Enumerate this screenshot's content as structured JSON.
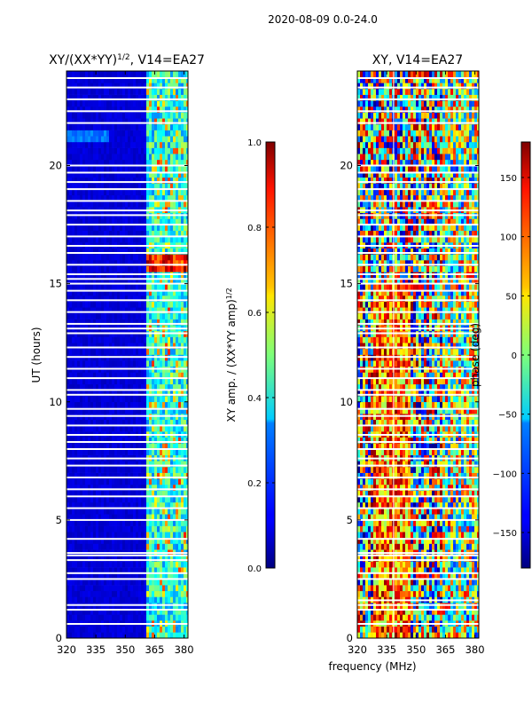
{
  "suptitle": "2020-08-09 0.0-24.0",
  "chart_data": [
    {
      "type": "heatmap",
      "title": "XY/(XX*YY)^{1/2}, V14=EA27",
      "title_main": "XY/(XX*YY)",
      "title_sup": "1/2",
      "title_tail": ", V14=EA27",
      "xlabel": "",
      "ylabel": "UT (hours)",
      "xlim": [
        320,
        382
      ],
      "ylim": [
        0,
        24
      ],
      "xticks": [
        "320",
        "335",
        "350",
        "365",
        "380"
      ],
      "xtick_values": [
        320,
        335,
        350,
        365,
        380
      ],
      "yticks": [
        "0",
        "5",
        "10",
        "15",
        "20"
      ],
      "ytick_values": [
        0,
        5,
        10,
        15,
        20
      ],
      "colormap": "jet",
      "colorbar": {
        "label": "XY amp. / (XX*YY amp)^{1/2}",
        "label_main": "XY amp. / (XX*YY amp)",
        "label_sup": "1/2",
        "range": [
          0.0,
          1.0
        ],
        "ticks": [
          "0.0",
          "0.2",
          "0.4",
          "0.6",
          "0.8",
          "1.0"
        ],
        "tick_values": [
          0.0,
          0.2,
          0.4,
          0.6,
          0.8,
          1.0
        ]
      },
      "flagged_hours": [
        0.6,
        1.2,
        1.4,
        2.5,
        2.75,
        3.3,
        3.5,
        3.6,
        4.2,
        5.0,
        5.5,
        6.0,
        6.3,
        6.8,
        7.3,
        7.6,
        8.0,
        8.3,
        8.6,
        9.0,
        9.4,
        9.7,
        10.3,
        10.5,
        11.0,
        11.4,
        11.9,
        12.3,
        12.9,
        13.1,
        13.3,
        13.8,
        14.3,
        14.7,
        15.0,
        15.2,
        15.4,
        15.8,
        16.3,
        16.6,
        17.0,
        17.5,
        17.9,
        18.1,
        18.5,
        19.0,
        19.3,
        19.7,
        20.0,
        21.8,
        22.3,
        22.8,
        23.3,
        23.7
      ]
    },
    {
      "type": "heatmap",
      "title": "XY, V14=EA27",
      "xlabel": "frequency (MHz)",
      "ylabel": "",
      "xlim": [
        320,
        382
      ],
      "ylim": [
        0,
        24
      ],
      "xticks": [
        "320",
        "335",
        "350",
        "365",
        "380"
      ],
      "xtick_values": [
        320,
        335,
        350,
        365,
        380
      ],
      "yticks": [
        "0",
        "5",
        "10",
        "15",
        "20"
      ],
      "ytick_values": [
        0,
        5,
        10,
        15,
        20
      ],
      "colormap": "jet",
      "colorbar": {
        "label": "phase (deg)",
        "range": [
          -180,
          180
        ],
        "ticks": [
          "−150",
          "−100",
          "−50",
          "0",
          "50",
          "100",
          "150"
        ],
        "tick_values": [
          -150,
          -100,
          -50,
          0,
          50,
          100,
          150
        ]
      },
      "flagged_hours": [
        0.6,
        1.2,
        1.4,
        1.6,
        2.5,
        2.75,
        3.3,
        3.5,
        3.6,
        4.2,
        5.0,
        5.5,
        6.0,
        6.3,
        6.8,
        7.3,
        7.6,
        8.0,
        8.3,
        8.6,
        9.0,
        9.4,
        9.7,
        10.3,
        10.5,
        11.0,
        11.4,
        11.9,
        12.3,
        12.9,
        13.1,
        13.3,
        13.8,
        14.3,
        14.7,
        15.0,
        15.2,
        15.4,
        15.8,
        16.3,
        16.6,
        17.0,
        17.5,
        17.9,
        18.1,
        18.5,
        19.0,
        19.3,
        19.7,
        20.0,
        21.8,
        22.3,
        22.8,
        23.3,
        23.7
      ]
    }
  ]
}
